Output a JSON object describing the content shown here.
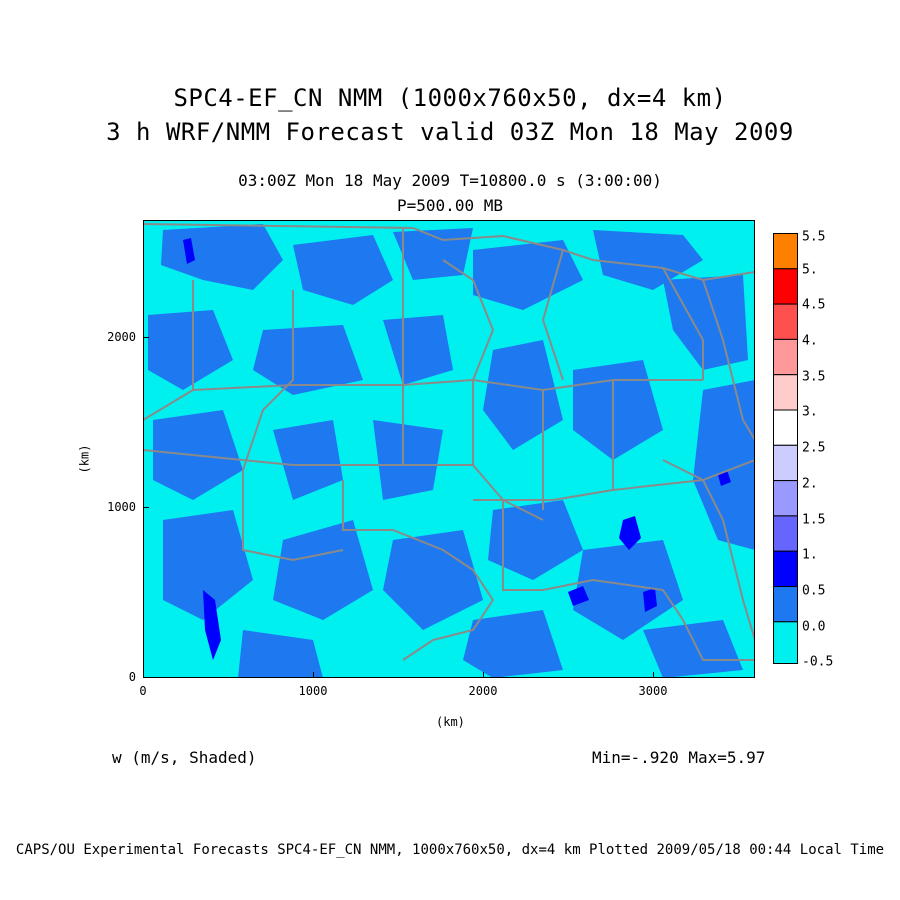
{
  "header": {
    "title_line1": "SPC4-EF_CN NMM (1000x760x50, dx=4 km)",
    "title_line2": "3 h WRF/NMM Forecast valid 03Z Mon 18 May 2009",
    "subtitle_time": "03:00Z Mon 18 May 2009     T=10800.0 s (3:00:00)",
    "subtitle_level": "P=500.00 MB"
  },
  "axes": {
    "xlabel": "(km)",
    "ylabel": "(km)",
    "x_ticks": [
      "0",
      "1000",
      "2000",
      "3000"
    ],
    "y_ticks": [
      "0",
      "1000",
      "2000"
    ],
    "x_range_km": [
      0,
      3600
    ],
    "y_range_km": [
      0,
      2700
    ]
  },
  "field": {
    "variable_label": "w (m/s, Shaded)",
    "minmax_label": "Min=-.920 Max=5.97"
  },
  "colorbar": {
    "labels": [
      "5.5",
      "5.",
      "4.5",
      "4.",
      "3.5",
      "3.",
      "2.5",
      "2.",
      "1.5",
      "1.",
      "0.5",
      "0.0",
      "-0.5"
    ],
    "colors": [
      "#ff8000",
      "#ff0000",
      "#ff5050",
      "#ff9999",
      "#ffcccc",
      "#ffffff",
      "#ccccff",
      "#9999ff",
      "#6666ff",
      "#0000ff",
      "#1e78f0",
      "#00f0f0"
    ]
  },
  "map_colors": {
    "background": "#00f0f0",
    "patches": "#1e78f0",
    "updraft": "#0000ff",
    "boundaries": "#8a8a8a"
  },
  "footer": {
    "text": "CAPS/OU Experimental Forecasts  SPC4-EF_CN NMM, 1000x760x50, dx=4 km  Plotted 2009/05/18 00:44 Local Time"
  }
}
